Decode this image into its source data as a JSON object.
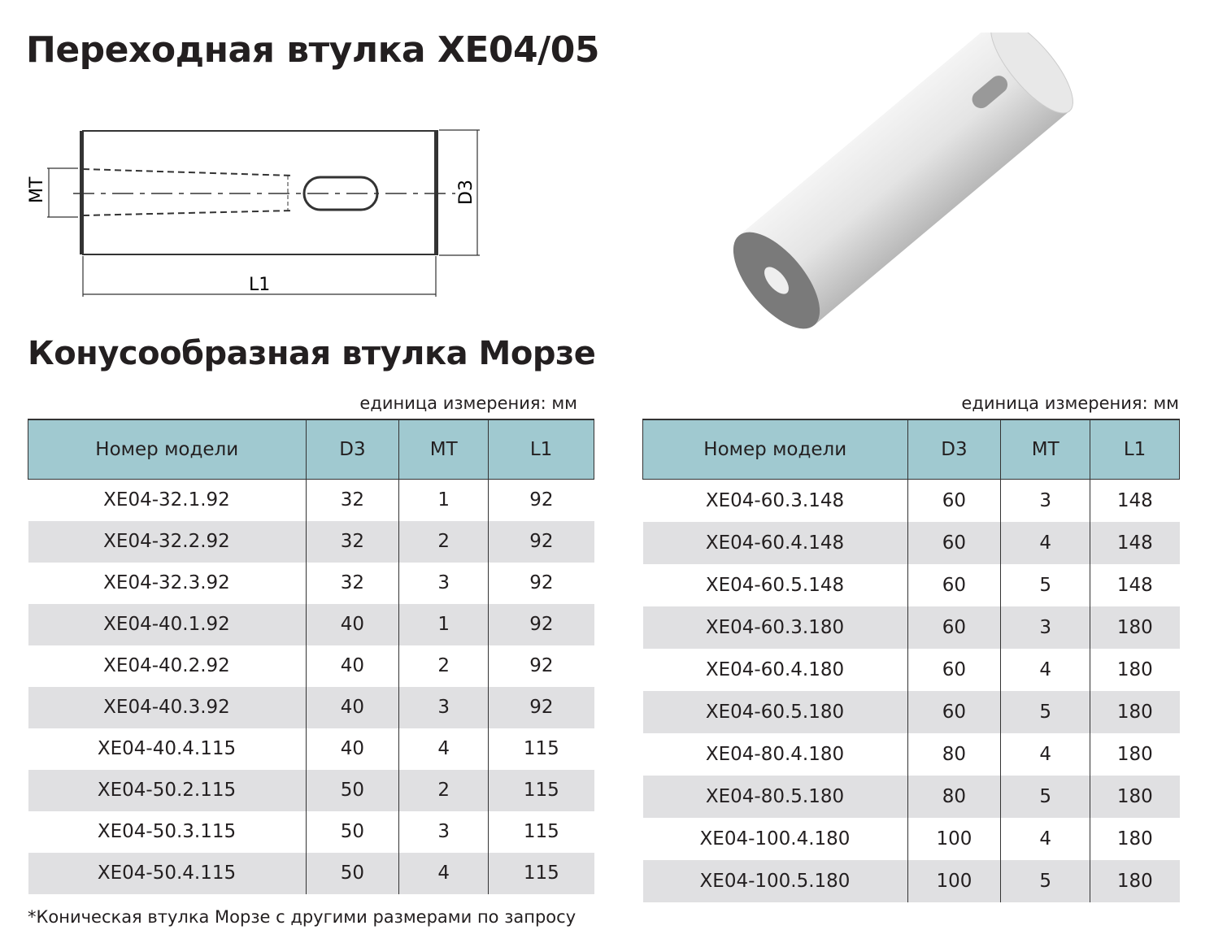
{
  "title": "Переходная втулка XE04/05",
  "subtitle": "Конусообразная втулка Морзе",
  "drawing": {
    "labels": {
      "mt": "MT",
      "d3": "D3",
      "l1": "L1"
    }
  },
  "unit_label": "единица измерения: мм",
  "columns": [
    "Номер модели",
    "D3",
    "MT",
    "L1"
  ],
  "table_left": [
    [
      "XE04-32.1.92",
      "32",
      "1",
      "92"
    ],
    [
      "XE04-32.2.92",
      "32",
      "2",
      "92"
    ],
    [
      "XE04-32.3.92",
      "32",
      "3",
      "92"
    ],
    [
      "XE04-40.1.92",
      "40",
      "1",
      "92"
    ],
    [
      "XE04-40.2.92",
      "40",
      "2",
      "92"
    ],
    [
      "XE04-40.3.92",
      "40",
      "3",
      "92"
    ],
    [
      "XE04-40.4.115",
      "40",
      "4",
      "115"
    ],
    [
      "XE04-50.2.115",
      "50",
      "2",
      "115"
    ],
    [
      "XE04-50.3.115",
      "50",
      "3",
      "115"
    ],
    [
      "XE04-50.4.115",
      "50",
      "4",
      "115"
    ]
  ],
  "table_right": [
    [
      "XE04-60.3.148",
      "60",
      "3",
      "148"
    ],
    [
      "XE04-60.4.148",
      "60",
      "4",
      "148"
    ],
    [
      "XE04-60.5.148",
      "60",
      "5",
      "148"
    ],
    [
      "XE04-60.3.180",
      "60",
      "3",
      "180"
    ],
    [
      "XE04-60.4.180",
      "60",
      "4",
      "180"
    ],
    [
      "XE04-60.5.180",
      "60",
      "5",
      "180"
    ],
    [
      "XE04-80.4.180",
      "80",
      "4",
      "180"
    ],
    [
      "XE04-80.5.180",
      "80",
      "5",
      "180"
    ],
    [
      "XE04-100.4.180",
      "100",
      "4",
      "180"
    ],
    [
      "XE04-100.5.180",
      "100",
      "5",
      "180"
    ]
  ],
  "footnote": "*Коническая втулка Морзе с другими размерами по запросу",
  "colors": {
    "header": "#a0c9d0",
    "stripe": "#e0e0e2"
  }
}
